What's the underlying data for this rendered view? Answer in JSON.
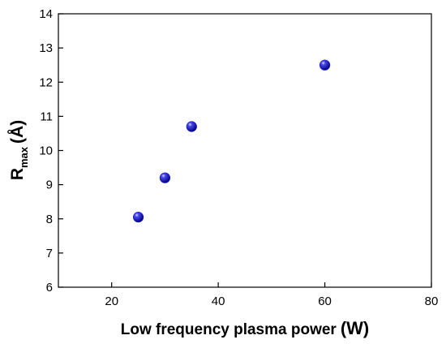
{
  "chart_data": {
    "type": "scatter",
    "title": "",
    "xlabel": "Low frequency plasma power",
    "xlabel_unit": "(W)",
    "ylabel_main": "R",
    "ylabel_sub": "max",
    "ylabel_unit": "(Å)",
    "xlim": [
      10,
      80
    ],
    "ylim": [
      6,
      14
    ],
    "xticks": [
      20,
      40,
      60,
      80
    ],
    "yticks": [
      6,
      7,
      8,
      9,
      10,
      11,
      12,
      13,
      14
    ],
    "grid": false,
    "legend": "none",
    "marker_color": "#1a1adc",
    "series": [
      {
        "x": [
          25,
          30,
          35,
          60
        ],
        "y": [
          8.05,
          9.2,
          10.7,
          12.5
        ]
      }
    ]
  }
}
